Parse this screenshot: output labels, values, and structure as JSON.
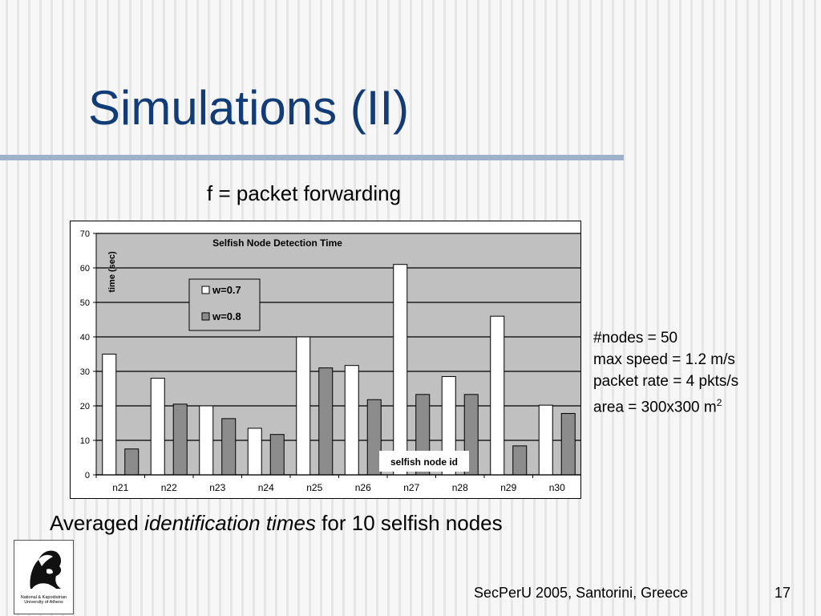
{
  "slide": {
    "title": "Simulations (II)",
    "subtitle": "f = packet forwarding",
    "caption_pre": "Averaged ",
    "caption_italic": "identification times",
    "caption_post": " for 10 selfish nodes",
    "params": [
      "#nodes = 50",
      "max speed = 1.2 m/s",
      "packet rate = 4 pkts/s"
    ],
    "area_text": "area = 300x300 m",
    "area_sup": "2",
    "footer": "SecPerU 2005, Santorini, Greece",
    "page_number": "17",
    "logo_lines": [
      "National & Kapodistrian",
      "University of Athens"
    ]
  },
  "chart_data": {
    "type": "bar",
    "title": "Selfish Node Detection Time",
    "ylabel": "time (sec)",
    "xlabel": "selfish node id",
    "categories": [
      "n21",
      "n22",
      "n23",
      "n24",
      "n25",
      "n26",
      "n27",
      "n28",
      "n29",
      "n30"
    ],
    "series": [
      {
        "name": "w=0.7",
        "color": "#ffffff",
        "values": [
          35,
          28,
          20,
          13.5,
          40,
          31.7,
          61,
          28.5,
          46,
          20.2
        ]
      },
      {
        "name": "w=0.8",
        "color": "#8c8c8c",
        "values": [
          7.5,
          20.5,
          16.3,
          11.7,
          31,
          21.8,
          23.3,
          23.3,
          8.4,
          17.8
        ]
      }
    ],
    "ylim": [
      0,
      70
    ],
    "yticks": [
      0,
      10,
      20,
      30,
      40,
      50,
      60,
      70
    ],
    "grid": true,
    "legend": "upper-left",
    "plot_background": "#c0c0c0"
  }
}
